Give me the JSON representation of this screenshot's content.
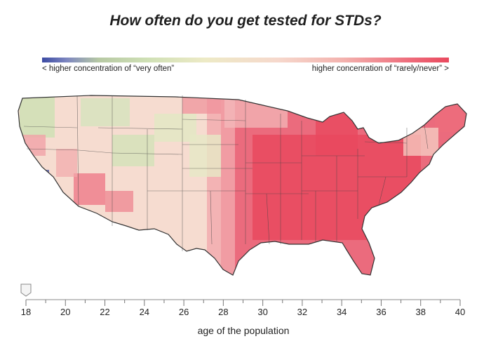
{
  "title": "How often do you get tested for STDs?",
  "legend": {
    "left_label": "< higher concentration of “very often”",
    "right_label": "higher concenration of “rarely/never” >",
    "colors": {
      "very_often": "#3b4aa3",
      "often": "#cfe0b5",
      "neutral": "#edeac6",
      "rarely": "#f3b2ae",
      "rarely_never": "#e9495e"
    }
  },
  "slider": {
    "value": 18,
    "min": 18,
    "max": 40,
    "tick_labels": [
      "18",
      "20",
      "22",
      "24",
      "26",
      "28",
      "30",
      "32",
      "34",
      "36",
      "38",
      "40"
    ],
    "axis_label": "age of the population"
  },
  "map": {
    "icon": "us-counties-map"
  }
}
